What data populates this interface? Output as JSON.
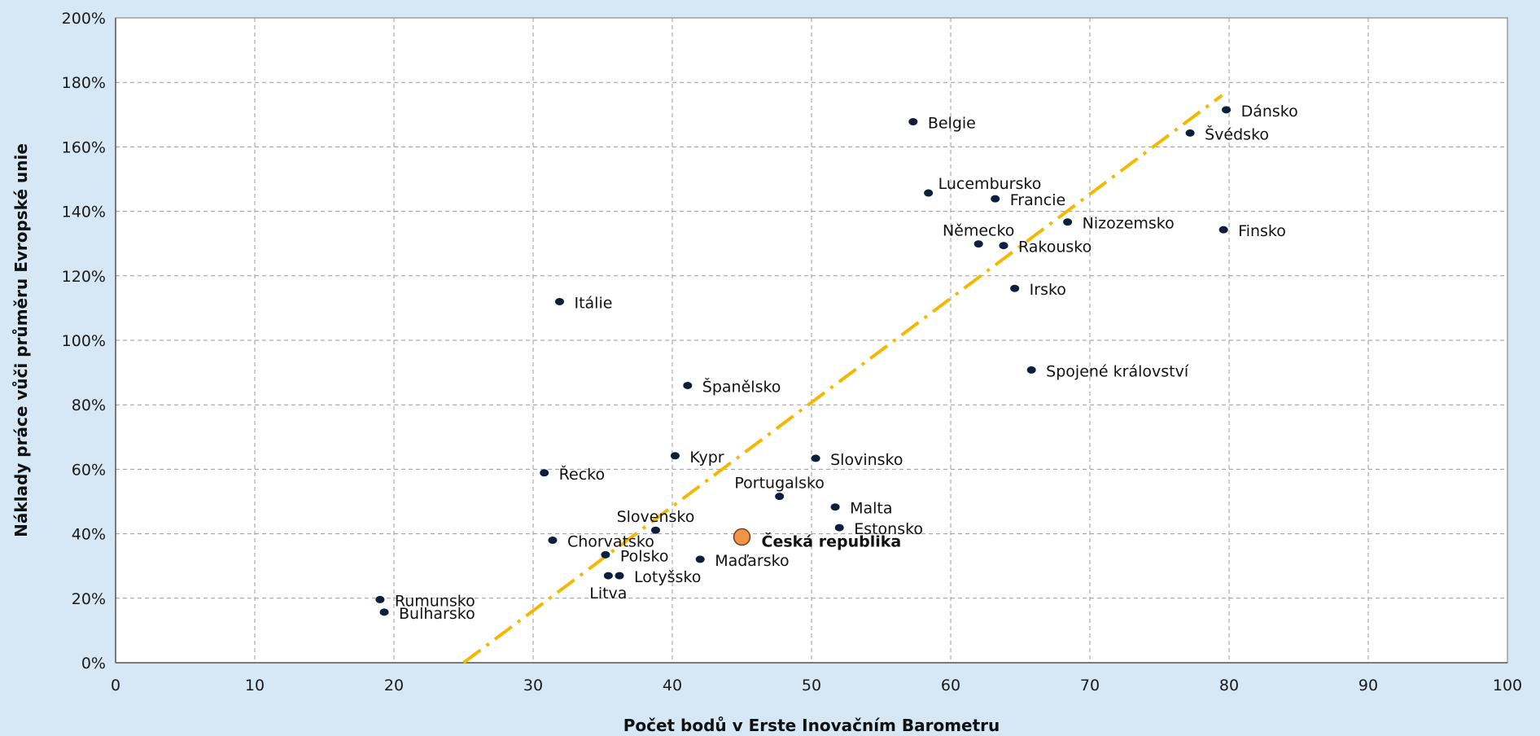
{
  "chart_data": {
    "type": "scatter",
    "xlabel": "Počet bodů v Erste Inovačním Barometru",
    "ylabel": "Náklady práce vůči průměru Evropské unie",
    "xlim": [
      0,
      100
    ],
    "ylim": [
      0,
      200
    ],
    "x_ticks": [
      "0",
      "10",
      "20",
      "30",
      "40",
      "50",
      "60",
      "70",
      "80",
      "90",
      "100"
    ],
    "y_ticks": [
      "0%",
      "20%",
      "40%",
      "60%",
      "80%",
      "100%",
      "120%",
      "140%",
      "160%",
      "180%",
      "200%"
    ],
    "grid": true,
    "colors": {
      "point": "#0b1f3d",
      "highlight": "#f0944a",
      "trend": "#f5b800",
      "plot_bg": "#ffffff",
      "page_bg": "#d6e7f5"
    },
    "trendline": {
      "style": "dash-dot",
      "from": [
        25,
        0
      ],
      "to": [
        79.5,
        176
      ]
    },
    "points": [
      {
        "name": "Dánsko",
        "x": 79.8,
        "y": 171.5,
        "pos": "right"
      },
      {
        "name": "Švédsko",
        "x": 77.2,
        "y": 164.3,
        "pos": "right"
      },
      {
        "name": "Belgie",
        "x": 57.3,
        "y": 167.8,
        "pos": "right"
      },
      {
        "name": "Lucembursko",
        "x": 58.4,
        "y": 145.7,
        "pos": "above-right"
      },
      {
        "name": "Francie",
        "x": 63.2,
        "y": 143.9,
        "pos": "right"
      },
      {
        "name": "Nizozemsko",
        "x": 68.4,
        "y": 136.7,
        "pos": "right"
      },
      {
        "name": "Finsko",
        "x": 79.6,
        "y": 134.3,
        "pos": "right"
      },
      {
        "name": "Německo",
        "x": 62.0,
        "y": 129.9,
        "pos": "above"
      },
      {
        "name": "Rakousko",
        "x": 63.8,
        "y": 129.4,
        "pos": "right"
      },
      {
        "name": "Irsko",
        "x": 64.6,
        "y": 116.1,
        "pos": "right"
      },
      {
        "name": "Itálie",
        "x": 31.9,
        "y": 112.0,
        "pos": "right"
      },
      {
        "name": "Spojené království",
        "x": 65.8,
        "y": 90.8,
        "pos": "right"
      },
      {
        "name": "Španělsko",
        "x": 41.1,
        "y": 86.0,
        "pos": "right"
      },
      {
        "name": "Kypr",
        "x": 40.2,
        "y": 64.2,
        "pos": "right"
      },
      {
        "name": "Slovinsko",
        "x": 50.3,
        "y": 63.4,
        "pos": "right"
      },
      {
        "name": "Řecko",
        "x": 30.8,
        "y": 58.9,
        "pos": "right"
      },
      {
        "name": "Portugalsko",
        "x": 47.7,
        "y": 51.6,
        "pos": "above"
      },
      {
        "name": "Malta",
        "x": 51.7,
        "y": 48.3,
        "pos": "right"
      },
      {
        "name": "Slovensko",
        "x": 38.8,
        "y": 41.1,
        "pos": "above"
      },
      {
        "name": "Estonsko",
        "x": 52.0,
        "y": 41.9,
        "pos": "right"
      },
      {
        "name": "Česká republika",
        "x": 45.0,
        "y": 39.0,
        "pos": "right",
        "highlight": true
      },
      {
        "name": "Chorvatsko",
        "x": 31.4,
        "y": 38.0,
        "pos": "right"
      },
      {
        "name": "Polsko",
        "x": 35.2,
        "y": 33.5,
        "pos": "right"
      },
      {
        "name": "Maďarsko",
        "x": 42.0,
        "y": 32.1,
        "pos": "right"
      },
      {
        "name": "Lotyšsko",
        "x": 36.2,
        "y": 27.0,
        "pos": "right"
      },
      {
        "name": "Litva",
        "x": 35.4,
        "y": 27.0,
        "pos": "below"
      },
      {
        "name": "Rumunsko",
        "x": 19.0,
        "y": 19.6,
        "pos": "right"
      },
      {
        "name": "Bulharsko",
        "x": 19.3,
        "y": 15.7,
        "pos": "right"
      }
    ]
  }
}
